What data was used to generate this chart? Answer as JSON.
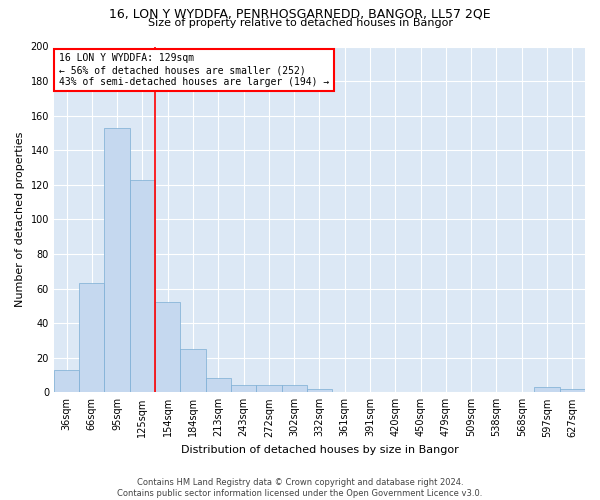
{
  "title_line1": "16, LON Y WYDDFA, PENRHOSGARNEDD, BANGOR, LL57 2QE",
  "title_line2": "Size of property relative to detached houses in Bangor",
  "xlabel": "Distribution of detached houses by size in Bangor",
  "ylabel": "Number of detached properties",
  "bar_labels": [
    "36sqm",
    "66sqm",
    "95sqm",
    "125sqm",
    "154sqm",
    "184sqm",
    "213sqm",
    "243sqm",
    "272sqm",
    "302sqm",
    "332sqm",
    "361sqm",
    "391sqm",
    "420sqm",
    "450sqm",
    "479sqm",
    "509sqm",
    "538sqm",
    "568sqm",
    "597sqm",
    "627sqm"
  ],
  "bar_values": [
    13,
    63,
    153,
    123,
    52,
    25,
    8,
    4,
    4,
    4,
    2,
    0,
    0,
    0,
    0,
    0,
    0,
    0,
    0,
    3,
    2
  ],
  "bar_color": "#c5d8ef",
  "bar_edgecolor": "#7badd4",
  "vline_x_index": 3.5,
  "annotation_text": "16 LON Y WYDDFA: 129sqm\n← 56% of detached houses are smaller (252)\n43% of semi-detached houses are larger (194) →",
  "annotation_box_color": "white",
  "annotation_box_edgecolor": "red",
  "vline_color": "red",
  "ylim": [
    0,
    200
  ],
  "yticks": [
    0,
    20,
    40,
    60,
    80,
    100,
    120,
    140,
    160,
    180,
    200
  ],
  "footnote": "Contains HM Land Registry data © Crown copyright and database right 2024.\nContains public sector information licensed under the Open Government Licence v3.0.",
  "plot_background": "#dce8f5",
  "fig_background": "white",
  "title1_fontsize": 9,
  "title2_fontsize": 8,
  "xlabel_fontsize": 8,
  "ylabel_fontsize": 8,
  "tick_fontsize": 7,
  "annot_fontsize": 7,
  "footnote_fontsize": 6
}
